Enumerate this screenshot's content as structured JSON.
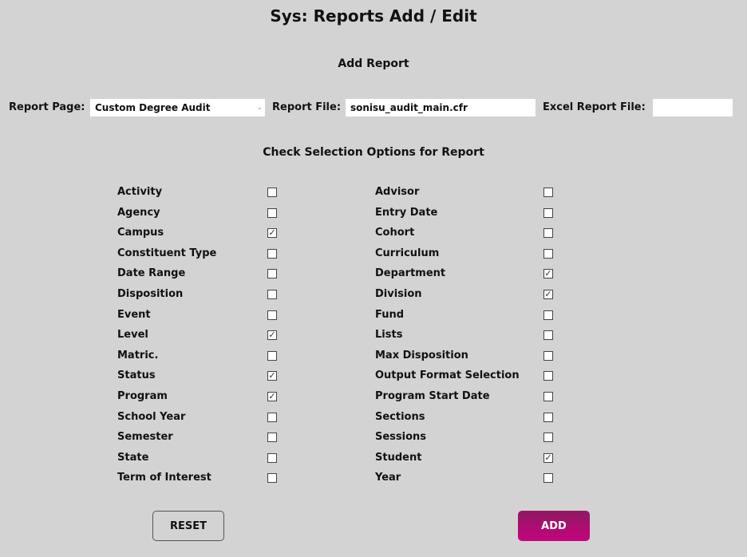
{
  "title": "Sys: Reports Add / Edit",
  "section_title": "Add Report",
  "form": {
    "report_page_label": "Report Page:",
    "report_page_value": "Custom Degree Audit",
    "report_file_label": "Report File:",
    "report_file_value": "sonisu_audit_main.cfr",
    "excel_file_label": "Excel Report File:",
    "excel_file_value": ""
  },
  "options_title": "Check Selection Options for Report",
  "left_options": [
    {
      "label": "Activity",
      "checked": false
    },
    {
      "label": "Agency",
      "checked": false
    },
    {
      "label": "Campus",
      "checked": true
    },
    {
      "label": "Constituent Type",
      "checked": false
    },
    {
      "label": "Date Range",
      "checked": false
    },
    {
      "label": "Disposition",
      "checked": false
    },
    {
      "label": "Event",
      "checked": false
    },
    {
      "label": "Level",
      "checked": true
    },
    {
      "label": "Matric.",
      "checked": false
    },
    {
      "label": "Status",
      "checked": true
    },
    {
      "label": "Program",
      "checked": true
    },
    {
      "label": "School Year",
      "checked": false
    },
    {
      "label": "Semester",
      "checked": false
    },
    {
      "label": "State",
      "checked": false
    },
    {
      "label": "Term of Interest",
      "checked": false
    }
  ],
  "right_options": [
    {
      "label": "Advisor",
      "checked": false
    },
    {
      "label": "Entry Date",
      "checked": false
    },
    {
      "label": "Cohort",
      "checked": false
    },
    {
      "label": "Curriculum",
      "checked": false
    },
    {
      "label": "Department",
      "checked": true
    },
    {
      "label": "Division",
      "checked": true
    },
    {
      "label": "Fund",
      "checked": false
    },
    {
      "label": "Lists",
      "checked": false
    },
    {
      "label": "Max Disposition",
      "checked": false
    },
    {
      "label": "Output Format Selection",
      "checked": false
    },
    {
      "label": "Program Start Date",
      "checked": false
    },
    {
      "label": "Sections",
      "checked": false
    },
    {
      "label": "Sessions",
      "checked": false
    },
    {
      "label": "Student",
      "checked": true
    },
    {
      "label": "Year",
      "checked": false
    }
  ],
  "buttons": {
    "reset": "RESET",
    "add": "ADD"
  },
  "colors": {
    "add_button_top": "#8e1a62",
    "add_button_bottom": "#c5037f",
    "background": "#d3d3d3"
  }
}
